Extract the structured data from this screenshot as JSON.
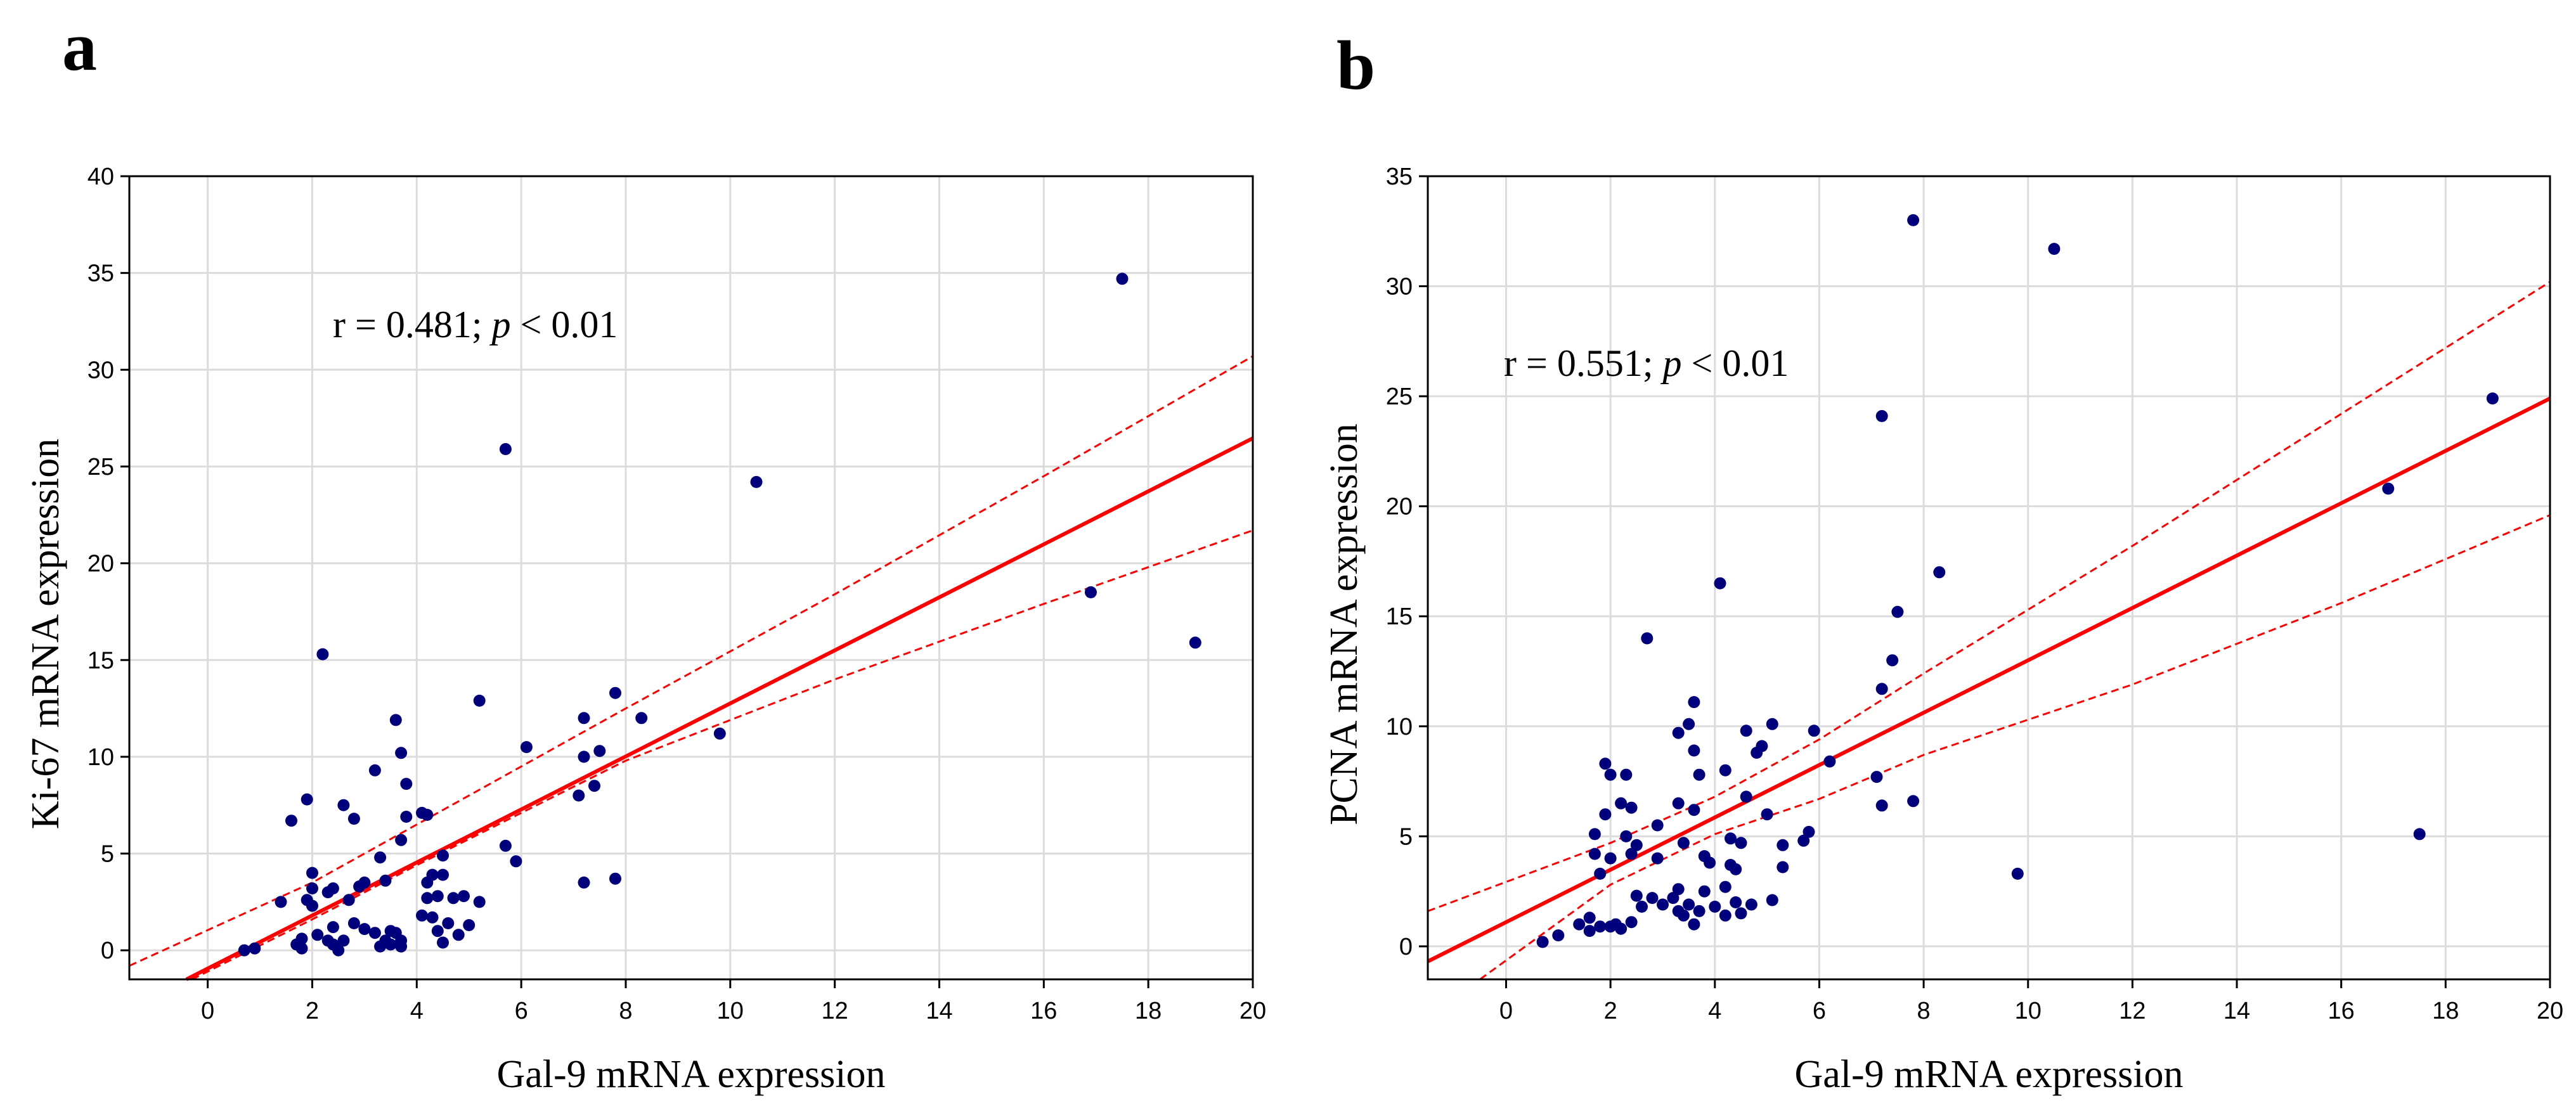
{
  "chart_data": [
    {
      "type": "scatter",
      "panel_label": "a",
      "title": "",
      "xlabel": "Gal-9 mRNA expression",
      "ylabel": "Ki-67 mRNA expression",
      "xlim": [
        -1.5,
        20
      ],
      "ylim": [
        -1.5,
        40
      ],
      "xticks": [
        0,
        2,
        4,
        6,
        8,
        10,
        12,
        14,
        16,
        18,
        20
      ],
      "yticks": [
        0,
        5,
        10,
        15,
        20,
        25,
        30,
        35,
        40
      ],
      "grid": true,
      "annotation": {
        "prefix": "r = 0.481; ",
        "p_symbol": "p",
        "suffix": " < 0.01",
        "position": "upper-left"
      },
      "regression": {
        "slope": 1.37,
        "intercept": -0.94,
        "ci_line_color": "#ff0000"
      },
      "ci_upper": [
        [
          -1.5,
          -0.8
        ],
        [
          2.0,
          3.5
        ],
        [
          4.0,
          6.5
        ],
        [
          8.0,
          12.5
        ],
        [
          12.0,
          18.4
        ],
        [
          16.0,
          24.5
        ],
        [
          20.0,
          30.7
        ]
      ],
      "ci_lower": [
        [
          -0.3,
          -1.5
        ],
        [
          2.0,
          1.6
        ],
        [
          4.0,
          4.4
        ],
        [
          8.0,
          9.8
        ],
        [
          12.0,
          14.0
        ],
        [
          16.0,
          17.9
        ],
        [
          20.0,
          21.7
        ]
      ],
      "points": [
        [
          0.7,
          0.0
        ],
        [
          0.9,
          0.1
        ],
        [
          1.4,
          2.5
        ],
        [
          1.6,
          6.7
        ],
        [
          1.7,
          0.3
        ],
        [
          1.8,
          0.6
        ],
        [
          1.8,
          0.1
        ],
        [
          1.9,
          2.6
        ],
        [
          1.9,
          7.8
        ],
        [
          2.0,
          3.2
        ],
        [
          2.0,
          2.3
        ],
        [
          2.0,
          4.0
        ],
        [
          2.1,
          0.8
        ],
        [
          2.2,
          15.3
        ],
        [
          2.3,
          3.0
        ],
        [
          2.3,
          0.5
        ],
        [
          2.4,
          1.2
        ],
        [
          2.4,
          0.3
        ],
        [
          2.4,
          3.2
        ],
        [
          2.5,
          0.0
        ],
        [
          2.6,
          0.5
        ],
        [
          2.6,
          7.5
        ],
        [
          2.7,
          2.6
        ],
        [
          2.8,
          6.8
        ],
        [
          2.8,
          1.4
        ],
        [
          2.9,
          3.3
        ],
        [
          3.0,
          3.5
        ],
        [
          3.0,
          1.1
        ],
        [
          3.2,
          0.9
        ],
        [
          3.2,
          9.3
        ],
        [
          3.3,
          4.8
        ],
        [
          3.3,
          0.2
        ],
        [
          3.4,
          0.5
        ],
        [
          3.4,
          3.6
        ],
        [
          3.5,
          1.0
        ],
        [
          3.5,
          0.3
        ],
        [
          3.6,
          11.9
        ],
        [
          3.6,
          0.9
        ],
        [
          3.7,
          10.2
        ],
        [
          3.7,
          5.7
        ],
        [
          3.7,
          0.5
        ],
        [
          3.7,
          0.2
        ],
        [
          3.8,
          6.9
        ],
        [
          3.8,
          8.6
        ],
        [
          4.1,
          1.8
        ],
        [
          4.1,
          7.1
        ],
        [
          4.2,
          3.5
        ],
        [
          4.2,
          2.7
        ],
        [
          4.2,
          7.0
        ],
        [
          4.3,
          3.9
        ],
        [
          4.3,
          1.7
        ],
        [
          4.4,
          1.0
        ],
        [
          4.4,
          2.8
        ],
        [
          4.5,
          0.4
        ],
        [
          4.5,
          4.9
        ],
        [
          4.5,
          3.9
        ],
        [
          4.6,
          1.4
        ],
        [
          4.7,
          2.7
        ],
        [
          4.8,
          0.8
        ],
        [
          4.9,
          2.8
        ],
        [
          5.0,
          1.3
        ],
        [
          5.2,
          12.9
        ],
        [
          5.2,
          2.5
        ],
        [
          5.7,
          25.9
        ],
        [
          5.7,
          5.4
        ],
        [
          5.9,
          4.6
        ],
        [
          6.1,
          10.5
        ],
        [
          7.1,
          8.0
        ],
        [
          7.2,
          3.5
        ],
        [
          7.2,
          12.0
        ],
        [
          7.2,
          10.0
        ],
        [
          7.4,
          8.5
        ],
        [
          7.5,
          10.3
        ],
        [
          7.8,
          13.3
        ],
        [
          7.8,
          3.7
        ],
        [
          8.3,
          12.0
        ],
        [
          9.8,
          11.2
        ],
        [
          10.5,
          24.2
        ],
        [
          16.9,
          18.5
        ],
        [
          17.5,
          34.7
        ],
        [
          18.9,
          15.9
        ]
      ]
    },
    {
      "type": "scatter",
      "panel_label": "b",
      "title": "",
      "xlabel": "Gal-9 mRNA expression",
      "ylabel": "PCNA mRNA expression",
      "xlim": [
        -1.5,
        20
      ],
      "ylim": [
        -1.5,
        35
      ],
      "xticks": [
        0,
        2,
        4,
        6,
        8,
        10,
        12,
        14,
        16,
        18,
        20
      ],
      "yticks": [
        0,
        5,
        10,
        15,
        20,
        25,
        30,
        35
      ],
      "grid": true,
      "annotation": {
        "prefix": "r = 0.551; ",
        "p_symbol": "p",
        "suffix": " < 0.01",
        "position": "upper-left"
      },
      "regression": {
        "slope": 1.19,
        "intercept": 1.1,
        "ci_line_color": "#ff0000"
      },
      "ci_upper": [
        [
          -1.5,
          1.6
        ],
        [
          2.0,
          4.7
        ],
        [
          4.0,
          6.8
        ],
        [
          6.0,
          9.4
        ],
        [
          8.0,
          12.4
        ],
        [
          12.0,
          18.2
        ],
        [
          16.0,
          24.2
        ],
        [
          20.0,
          30.2
        ]
      ],
      "ci_lower": [
        [
          -0.5,
          -1.5
        ],
        [
          2.0,
          2.8
        ],
        [
          4.0,
          5.1
        ],
        [
          6.0,
          6.7
        ],
        [
          8.0,
          8.7
        ],
        [
          12.0,
          11.9
        ],
        [
          16.0,
          15.6
        ],
        [
          20.0,
          19.6
        ]
      ],
      "points": [
        [
          0.7,
          0.2
        ],
        [
          1.0,
          0.5
        ],
        [
          1.4,
          1.0
        ],
        [
          1.6,
          1.3
        ],
        [
          1.6,
          0.7
        ],
        [
          1.7,
          4.2
        ],
        [
          1.7,
          5.1
        ],
        [
          1.8,
          0.9
        ],
        [
          1.8,
          3.3
        ],
        [
          1.9,
          8.3
        ],
        [
          1.9,
          6.0
        ],
        [
          2.0,
          4.0
        ],
        [
          2.0,
          0.9
        ],
        [
          2.0,
          7.8
        ],
        [
          2.1,
          1.0
        ],
        [
          2.2,
          6.5
        ],
        [
          2.2,
          0.8
        ],
        [
          2.3,
          5.0
        ],
        [
          2.3,
          7.8
        ],
        [
          2.4,
          4.2
        ],
        [
          2.4,
          1.1
        ],
        [
          2.4,
          6.3
        ],
        [
          2.5,
          4.6
        ],
        [
          2.5,
          2.3
        ],
        [
          2.6,
          1.8
        ],
        [
          2.7,
          14.0
        ],
        [
          2.8,
          2.2
        ],
        [
          2.9,
          4.0
        ],
        [
          2.9,
          5.5
        ],
        [
          3.0,
          1.9
        ],
        [
          3.2,
          2.2
        ],
        [
          3.3,
          2.6
        ],
        [
          3.3,
          1.6
        ],
        [
          3.3,
          9.7
        ],
        [
          3.3,
          6.5
        ],
        [
          3.4,
          1.4
        ],
        [
          3.4,
          4.7
        ],
        [
          3.5,
          10.1
        ],
        [
          3.5,
          1.9
        ],
        [
          3.6,
          8.9
        ],
        [
          3.6,
          1.0
        ],
        [
          3.6,
          11.1
        ],
        [
          3.6,
          6.2
        ],
        [
          3.7,
          1.6
        ],
        [
          3.7,
          7.8
        ],
        [
          3.8,
          2.5
        ],
        [
          3.8,
          4.1
        ],
        [
          3.9,
          3.8
        ],
        [
          4.0,
          1.8
        ],
        [
          4.1,
          16.5
        ],
        [
          4.2,
          8.0
        ],
        [
          4.2,
          2.7
        ],
        [
          4.2,
          1.4
        ],
        [
          4.3,
          3.7
        ],
        [
          4.3,
          4.9
        ],
        [
          4.4,
          2.0
        ],
        [
          4.4,
          3.5
        ],
        [
          4.5,
          1.5
        ],
        [
          4.5,
          4.7
        ],
        [
          4.6,
          9.8
        ],
        [
          4.6,
          6.8
        ],
        [
          4.7,
          1.9
        ],
        [
          4.8,
          8.8
        ],
        [
          4.9,
          9.1
        ],
        [
          5.0,
          6.0
        ],
        [
          5.1,
          2.1
        ],
        [
          5.1,
          10.1
        ],
        [
          5.3,
          3.6
        ],
        [
          5.3,
          4.6
        ],
        [
          5.7,
          4.8
        ],
        [
          5.8,
          5.2
        ],
        [
          5.9,
          9.8
        ],
        [
          6.2,
          8.4
        ],
        [
          7.1,
          7.7
        ],
        [
          7.2,
          6.4
        ],
        [
          7.2,
          11.7
        ],
        [
          7.2,
          24.1
        ],
        [
          7.4,
          13.0
        ],
        [
          7.5,
          15.2
        ],
        [
          7.8,
          33.0
        ],
        [
          7.8,
          6.6
        ],
        [
          8.3,
          17.0
        ],
        [
          9.8,
          3.3
        ],
        [
          10.5,
          31.7
        ],
        [
          16.9,
          20.8
        ],
        [
          17.5,
          5.1
        ],
        [
          18.9,
          24.9
        ]
      ]
    }
  ]
}
